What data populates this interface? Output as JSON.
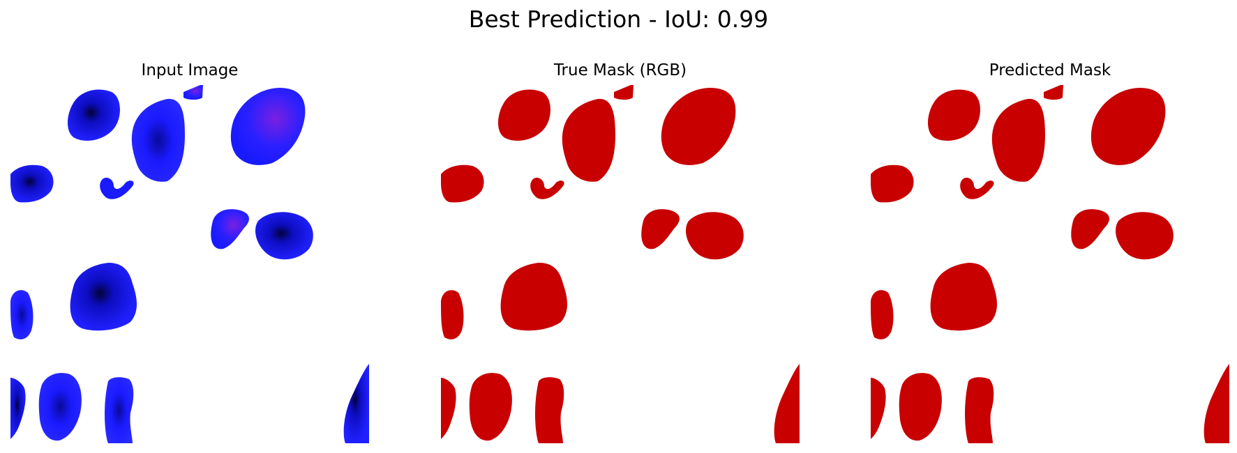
{
  "suptitle": "Best Prediction - IoU: 0.99",
  "panels": [
    {
      "id": "input",
      "title": "Input Image",
      "fill": "#1a1aff",
      "style": "nuclei-stain"
    },
    {
      "id": "true-mask",
      "title": "True Mask (RGB)",
      "fill": "#c80000",
      "style": "mask"
    },
    {
      "id": "pred-mask",
      "title": "Predicted Mask",
      "fill": "#c80000",
      "style": "mask"
    }
  ],
  "colors": {
    "nucleus_blue": "#1a1aff",
    "nucleus_dark": "#05056e",
    "nucleus_magenta": "#8a2be2",
    "mask_red": "#c80000",
    "background": "#ffffff"
  }
}
